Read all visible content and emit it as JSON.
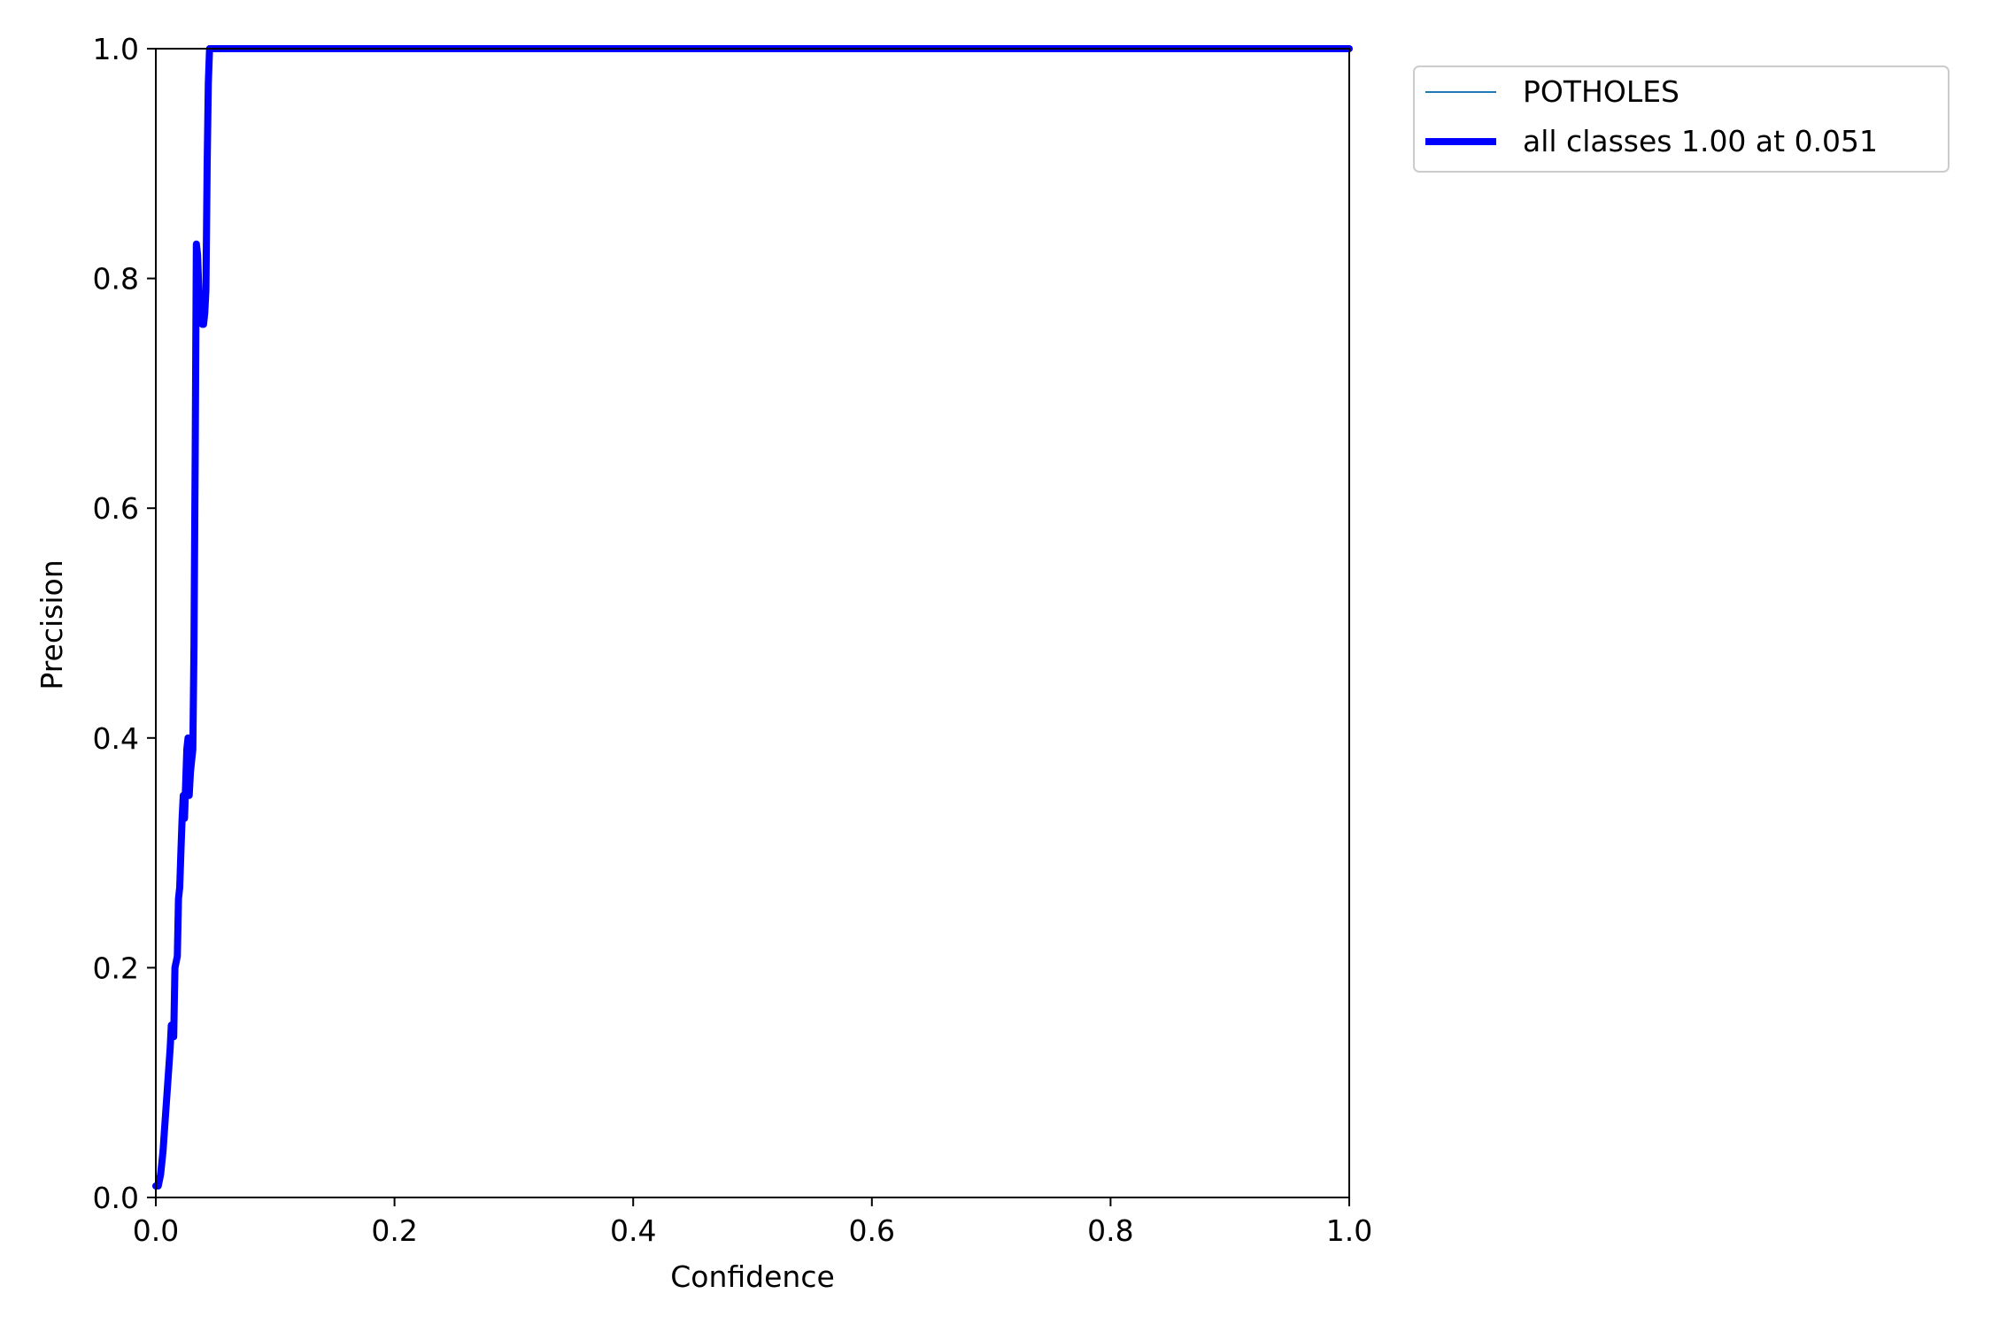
{
  "chart_data": {
    "type": "line",
    "title": "",
    "xlabel": "Confidence",
    "ylabel": "Precision",
    "xlim": [
      0.0,
      1.0
    ],
    "ylim": [
      0.0,
      1.0
    ],
    "xticks": [
      "0.0",
      "0.2",
      "0.4",
      "0.6",
      "0.8",
      "1.0"
    ],
    "yticks": [
      "0.0",
      "0.2",
      "0.4",
      "0.6",
      "0.8",
      "1.0"
    ],
    "grid": false,
    "legend_position": "outside-top-right",
    "series": [
      {
        "name": "POTHOLES",
        "color": "#1f77b4",
        "line_style": "thin",
        "x": [
          0.0,
          0.002,
          0.004,
          0.006,
          0.008,
          0.01,
          0.012,
          0.013,
          0.015,
          0.016,
          0.018,
          0.019,
          0.02,
          0.021,
          0.022,
          0.023,
          0.024,
          0.025,
          0.026,
          0.027,
          0.028,
          0.029,
          0.03,
          0.031,
          0.032,
          0.033,
          0.034,
          0.035,
          0.036,
          0.037,
          0.038,
          0.039,
          0.04,
          0.041,
          0.042,
          0.043,
          0.044,
          0.045,
          0.046,
          0.047,
          0.048,
          0.049,
          0.05,
          0.051,
          0.06,
          0.2,
          0.4,
          0.6,
          0.8,
          1.0
        ],
        "y": [
          0.01,
          0.01,
          0.02,
          0.04,
          0.07,
          0.1,
          0.13,
          0.15,
          0.14,
          0.2,
          0.21,
          0.26,
          0.27,
          0.3,
          0.33,
          0.35,
          0.33,
          0.36,
          0.39,
          0.4,
          0.35,
          0.37,
          0.38,
          0.39,
          0.48,
          0.65,
          0.83,
          0.82,
          0.79,
          0.78,
          0.77,
          0.76,
          0.76,
          0.77,
          0.79,
          0.9,
          0.97,
          1.0,
          1.0,
          1.0,
          1.0,
          1.0,
          1.0,
          1.0,
          1.0,
          1.0,
          1.0,
          1.0,
          1.0,
          1.0
        ]
      },
      {
        "name": "all classes 1.00 at 0.051",
        "color": "#0000ff",
        "line_style": "thick",
        "x": [
          0.0,
          0.002,
          0.004,
          0.006,
          0.008,
          0.01,
          0.012,
          0.013,
          0.015,
          0.016,
          0.018,
          0.019,
          0.02,
          0.021,
          0.022,
          0.023,
          0.024,
          0.025,
          0.026,
          0.027,
          0.028,
          0.029,
          0.03,
          0.031,
          0.032,
          0.033,
          0.034,
          0.035,
          0.036,
          0.037,
          0.038,
          0.039,
          0.04,
          0.041,
          0.042,
          0.043,
          0.044,
          0.045,
          0.046,
          0.047,
          0.048,
          0.049,
          0.05,
          0.051,
          0.06,
          0.2,
          0.4,
          0.6,
          0.8,
          1.0
        ],
        "y": [
          0.01,
          0.01,
          0.02,
          0.04,
          0.07,
          0.1,
          0.13,
          0.15,
          0.14,
          0.2,
          0.21,
          0.26,
          0.27,
          0.3,
          0.33,
          0.35,
          0.33,
          0.36,
          0.39,
          0.4,
          0.35,
          0.37,
          0.38,
          0.39,
          0.48,
          0.65,
          0.83,
          0.82,
          0.79,
          0.78,
          0.77,
          0.76,
          0.76,
          0.77,
          0.79,
          0.9,
          0.97,
          1.0,
          1.0,
          1.0,
          1.0,
          1.0,
          1.0,
          1.0,
          1.0,
          1.0,
          1.0,
          1.0,
          1.0,
          1.0
        ]
      }
    ]
  }
}
